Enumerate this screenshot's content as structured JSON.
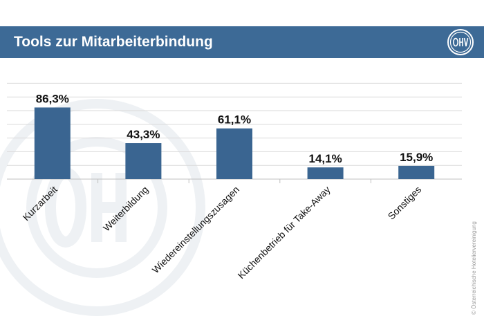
{
  "header": {
    "title": "Tools zur Mitarbeiterbindung"
  },
  "logo": {
    "icon": "oehv-logo-icon",
    "text": "ÖHV"
  },
  "watermark": {
    "icon": "oehv-seal-watermark-icon"
  },
  "copyright": "© Österreichische Hoteliervereinigung",
  "colors": {
    "header": "#3d6a96",
    "bar": "#3a6591",
    "grid": "#d9d9d9"
  },
  "chart_data": {
    "type": "bar",
    "categories": [
      "Kurzarbeit",
      "Weiterbildung",
      "Wiedereinstellungszusagen",
      "Küchenbetrieb für Take-Away",
      "Sonstiges"
    ],
    "values": [
      86.3,
      43.3,
      61.1,
      14.1,
      15.9
    ],
    "data_labels": [
      "86,3%",
      "43,3%",
      "61,1%",
      "14,1%",
      "15,9%"
    ],
    "ylim": [
      0,
      100
    ],
    "grid": true,
    "unit": "%"
  }
}
